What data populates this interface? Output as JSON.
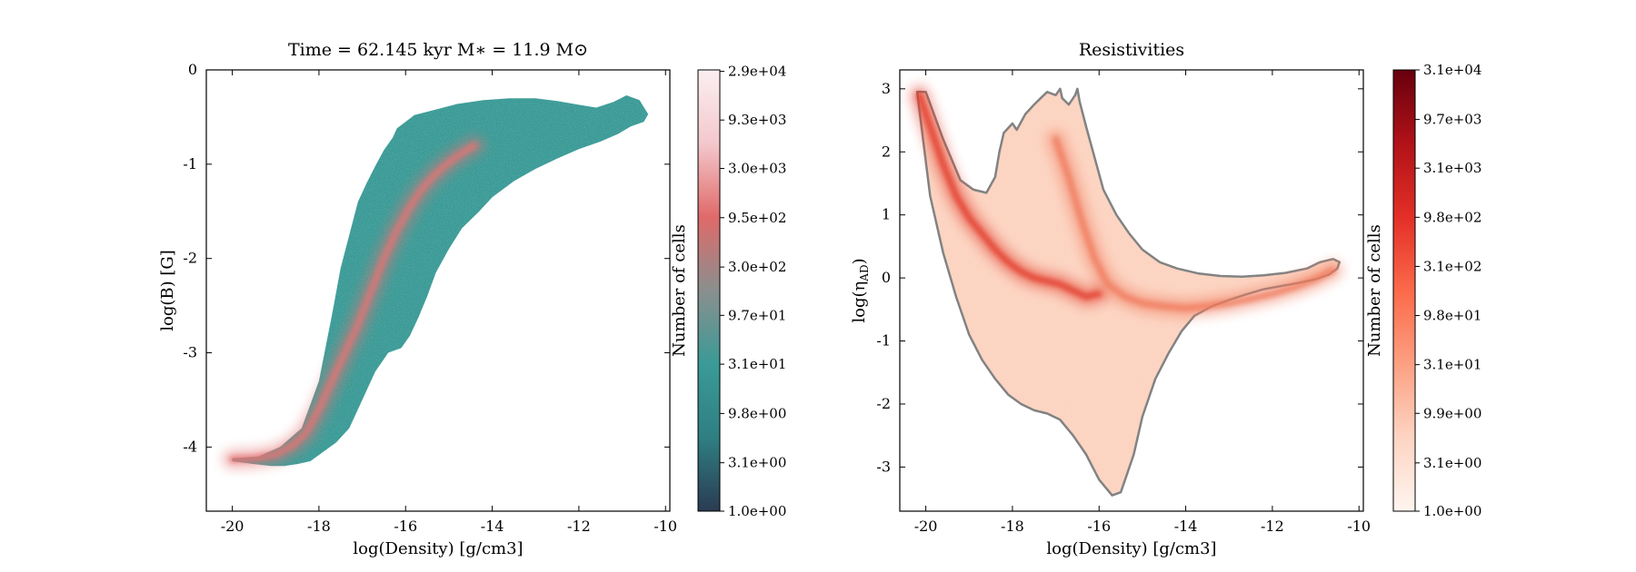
{
  "chart_data": [
    {
      "type": "heatmap",
      "title": "Time = 62.145 kyr    M$_*$ = 11.9 M$_\\odot$",
      "title_display": "Time = 62.145 kyr    M∗ = 11.9 M⊙",
      "xlabel": "log(Density) [g/cm3]",
      "ylabel": "log(B) [G]",
      "xlim": [
        -20.6,
        -9.9
      ],
      "ylim": [
        -4.68,
        0.0
      ],
      "xticks": [
        "-20",
        "-18",
        "-16",
        "-14",
        "-12",
        "-10"
      ],
      "yticks": [
        "0",
        "-1",
        "-2",
        "-3",
        "-4"
      ],
      "colorbar": {
        "label": "Number of cells",
        "scale": "log",
        "range": [
          1.0,
          30000
        ],
        "ticks": [
          "1.0e+00",
          "3.1e+00",
          "9.8e+00",
          "3.1e+01",
          "9.7e+01",
          "3.0e+02",
          "9.5e+02",
          "3.0e+03",
          "9.3e+03",
          "2.9e+04"
        ],
        "colors": [
          "#2a3b52",
          "#2f7f82",
          "#3a9a96",
          "#8a8f8e",
          "#e06a6a",
          "#f3c8cc",
          "#fbeff1"
        ]
      },
      "regions": [
        {
          "name": "populated-cells",
          "color": "#3a9a96",
          "outline_x": [
            -20.0,
            -19.4,
            -18.9,
            -18.4,
            -18.0,
            -17.7,
            -17.5,
            -17.3,
            -17.1,
            -16.9,
            -16.7,
            -16.5,
            -16.3,
            -16.2,
            -16.0,
            -15.8,
            -15.3,
            -14.8,
            -14.2,
            -13.6,
            -13.0,
            -12.5,
            -12.0,
            -11.6,
            -11.2,
            -10.9,
            -10.6,
            -10.4,
            -10.5,
            -10.8,
            -11.1,
            -11.5,
            -12.0,
            -12.5,
            -13.0,
            -13.5,
            -14.0,
            -14.3,
            -14.7,
            -15.0,
            -15.3,
            -15.5,
            -15.7,
            -15.9,
            -16.1,
            -16.4,
            -16.7,
            -17.0,
            -17.3,
            -17.6,
            -17.9,
            -18.2,
            -18.5,
            -18.8,
            -19.1,
            -19.5,
            -20.0
          ],
          "outline_y": [
            -4.12,
            -4.1,
            -4.0,
            -3.8,
            -3.3,
            -2.6,
            -2.1,
            -1.75,
            -1.4,
            -1.2,
            -1.02,
            -0.85,
            -0.72,
            -0.62,
            -0.55,
            -0.48,
            -0.42,
            -0.36,
            -0.32,
            -0.3,
            -0.3,
            -0.33,
            -0.37,
            -0.4,
            -0.34,
            -0.27,
            -0.32,
            -0.47,
            -0.55,
            -0.6,
            -0.68,
            -0.76,
            -0.84,
            -0.94,
            -1.05,
            -1.18,
            -1.35,
            -1.5,
            -1.68,
            -1.9,
            -2.15,
            -2.4,
            -2.62,
            -2.82,
            -2.95,
            -3.0,
            -3.2,
            -3.5,
            -3.8,
            -3.95,
            -4.05,
            -4.15,
            -4.18,
            -4.2,
            -4.2,
            -4.18,
            -4.15
          ]
        },
        {
          "name": "dense-ridge",
          "color": "#e57373",
          "x": [
            -20.0,
            -19.5,
            -19.0,
            -18.6,
            -18.3,
            -18.0,
            -17.7,
            -17.4,
            -17.1,
            -16.8,
            -16.5,
            -16.2,
            -15.9,
            -15.6,
            -15.3,
            -15.0,
            -14.7,
            -14.4
          ],
          "y": [
            -4.13,
            -4.12,
            -4.08,
            -3.98,
            -3.85,
            -3.6,
            -3.3,
            -3.0,
            -2.7,
            -2.35,
            -2.0,
            -1.7,
            -1.45,
            -1.25,
            -1.1,
            -0.98,
            -0.88,
            -0.8
          ]
        }
      ]
    },
    {
      "type": "heatmap",
      "title": "Resistivities",
      "xlabel": "log(Density) [g/cm3]",
      "ylabel": "log(η_AD)",
      "ylabel_main": "log(η",
      "ylabel_sub": "AD",
      "ylabel_close": ")",
      "xlim": [
        -20.6,
        -9.9
      ],
      "ylim": [
        -3.7,
        3.3
      ],
      "xticks": [
        "-20",
        "-18",
        "-16",
        "-14",
        "-12",
        "-10"
      ],
      "yticks": [
        "3",
        "2",
        "1",
        "0",
        "-1",
        "-2",
        "-3"
      ],
      "colorbar": {
        "label": "Number of cells",
        "scale": "log",
        "range": [
          1.0,
          31000
        ],
        "ticks": [
          "1.0e+00",
          "3.1e+00",
          "9.9e+00",
          "3.1e+01",
          "9.8e+01",
          "3.1e+02",
          "9.8e+02",
          "3.1e+03",
          "9.7e+03",
          "3.1e+04"
        ],
        "colors": [
          "#fff5f0",
          "#fdd4c2",
          "#fca082",
          "#fb6a4a",
          "#e32f27",
          "#b11218",
          "#67000d"
        ]
      },
      "regions": [
        {
          "name": "populated-cells",
          "color": "#fcd3c0",
          "outline_color": "#808080",
          "outline_x": [
            -20.2,
            -20.0,
            -19.6,
            -19.2,
            -18.9,
            -18.6,
            -18.4,
            -18.3,
            -18.2,
            -18.0,
            -17.9,
            -17.7,
            -17.5,
            -17.35,
            -17.2,
            -17.0,
            -16.9,
            -16.85,
            -16.7,
            -16.55,
            -16.5,
            -16.45,
            -16.3,
            -16.1,
            -15.9,
            -15.6,
            -15.3,
            -15.0,
            -14.6,
            -14.2,
            -13.7,
            -13.2,
            -12.7,
            -12.2,
            -11.7,
            -11.2,
            -10.9,
            -10.6,
            -10.45,
            -10.5,
            -10.7,
            -11.0,
            -11.4,
            -11.8,
            -12.2,
            -12.6,
            -13.0,
            -13.4,
            -13.8,
            -14.1,
            -14.4,
            -14.7,
            -15.0,
            -15.2,
            -15.4,
            -15.5,
            -15.7,
            -16.0,
            -16.3,
            -16.6,
            -16.9,
            -17.2,
            -17.5,
            -17.8,
            -18.1,
            -18.4,
            -18.7,
            -19.0,
            -19.3,
            -19.6,
            -19.9,
            -20.2
          ],
          "outline_y": [
            2.95,
            2.95,
            2.2,
            1.55,
            1.4,
            1.35,
            1.6,
            2.0,
            2.3,
            2.45,
            2.35,
            2.6,
            2.75,
            2.85,
            2.95,
            2.9,
            3.0,
            2.85,
            2.75,
            2.9,
            3.0,
            2.8,
            2.4,
            1.9,
            1.4,
            1.0,
            0.7,
            0.45,
            0.25,
            0.15,
            0.07,
            0.03,
            0.02,
            0.04,
            0.08,
            0.15,
            0.25,
            0.3,
            0.25,
            0.15,
            0.05,
            -0.02,
            -0.08,
            -0.13,
            -0.18,
            -0.26,
            -0.35,
            -0.45,
            -0.6,
            -0.85,
            -1.2,
            -1.6,
            -2.2,
            -2.8,
            -3.2,
            -3.4,
            -3.45,
            -3.2,
            -2.8,
            -2.5,
            -2.25,
            -2.15,
            -2.1,
            -2.0,
            -1.85,
            -1.6,
            -1.3,
            -0.9,
            -0.3,
            0.4,
            1.3,
            2.95
          ]
        },
        {
          "name": "dense-ridge",
          "color": "#e23b2a",
          "x": [
            -20.15,
            -19.9,
            -19.6,
            -19.3,
            -19.0,
            -18.7,
            -18.4,
            -18.1,
            -17.8,
            -17.5,
            -17.2,
            -16.9,
            -16.6,
            -16.3,
            -16.0
          ],
          "y": [
            2.9,
            2.4,
            1.8,
            1.3,
            0.95,
            0.7,
            0.45,
            0.25,
            0.1,
            0.0,
            -0.05,
            -0.1,
            -0.2,
            -0.3,
            -0.25
          ]
        },
        {
          "name": "secondary-branch",
          "color": "#f07a5d",
          "x": [
            -17.0,
            -16.7,
            -16.4,
            -16.1,
            -15.8,
            -15.4,
            -15.0,
            -14.5,
            -14.0,
            -13.5,
            -13.0,
            -12.5,
            -12.0,
            -11.5,
            -11.0,
            -10.6
          ],
          "y": [
            2.2,
            1.6,
            0.9,
            0.3,
            -0.1,
            -0.3,
            -0.4,
            -0.45,
            -0.48,
            -0.45,
            -0.4,
            -0.33,
            -0.25,
            -0.15,
            -0.02,
            0.12
          ]
        }
      ]
    }
  ]
}
